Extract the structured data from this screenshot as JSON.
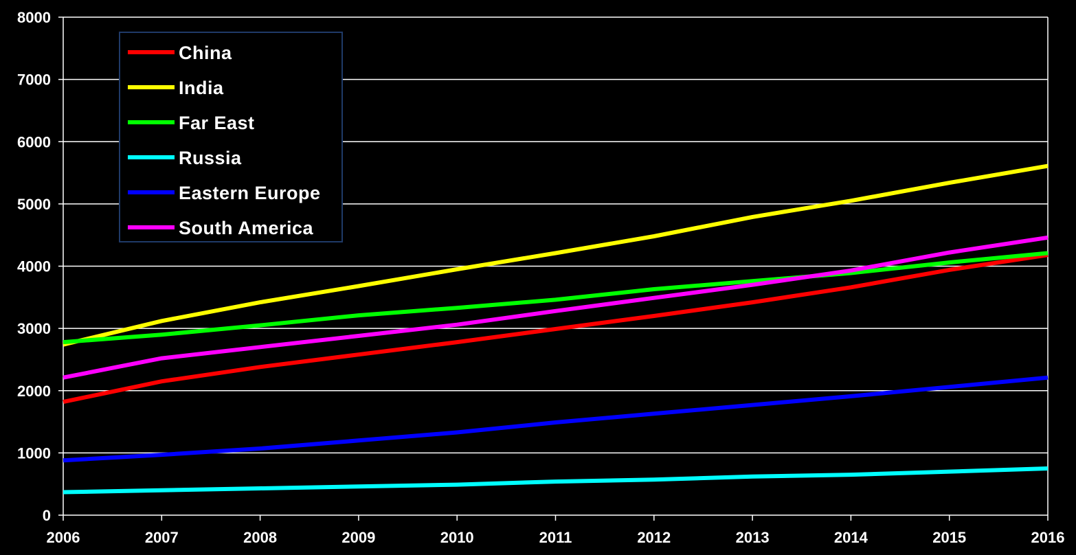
{
  "chart_data": {
    "type": "line",
    "title": "",
    "xlabel": "",
    "ylabel": "",
    "x": [
      "2006",
      "2007",
      "2008",
      "2009",
      "2010",
      "2011",
      "2012",
      "2013",
      "2014",
      "2015",
      "2016"
    ],
    "y_ticks": [
      "0",
      "1000",
      "2000",
      "3000",
      "4000",
      "5000",
      "6000",
      "7000",
      "8000"
    ],
    "ylim": [
      0,
      8000
    ],
    "grid": "horizontal",
    "legend_position": "top-left",
    "series": [
      {
        "name": "China",
        "color": "#ff0000",
        "values": [
          1820,
          2150,
          2380,
          2580,
          2780,
          2990,
          3200,
          3420,
          3660,
          3940,
          4180
        ]
      },
      {
        "name": "India",
        "color": "#ffff00",
        "values": [
          2740,
          3120,
          3420,
          3680,
          3950,
          4210,
          4480,
          4790,
          5050,
          5340,
          5610
        ]
      },
      {
        "name": "Far East",
        "color": "#00ff00",
        "values": [
          2780,
          2900,
          3050,
          3210,
          3330,
          3460,
          3630,
          3760,
          3890,
          4060,
          4210
        ]
      },
      {
        "name": "Russia",
        "color": "#00ffff",
        "values": [
          370,
          400,
          430,
          460,
          490,
          540,
          570,
          620,
          650,
          700,
          750
        ]
      },
      {
        "name": "Eastern Europe",
        "color": "#0000ff",
        "values": [
          880,
          970,
          1070,
          1200,
          1330,
          1490,
          1630,
          1770,
          1910,
          2060,
          2210
        ]
      },
      {
        "name": "South America",
        "color": "#ff00ff",
        "values": [
          2210,
          2520,
          2700,
          2880,
          3060,
          3280,
          3490,
          3700,
          3930,
          4220,
          4460
        ]
      }
    ]
  }
}
